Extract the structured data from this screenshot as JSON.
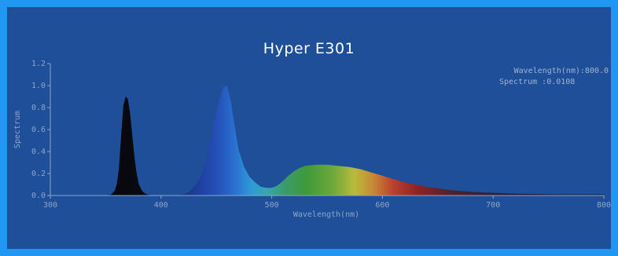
{
  "colors": {
    "frame": "#2196f3",
    "panel": "#1f4f99",
    "axis": "#8ea6c9",
    "uv_peak": "#000000"
  },
  "readout": {
    "wavelength": "Wavelength(nm):800.0",
    "spectrum": "Spectrum :0.0108"
  },
  "chart_data": {
    "type": "area",
    "title": "Hyper E301",
    "xlabel": "Wavelength(nm)",
    "ylabel": "Spectrum",
    "xlim": [
      300,
      800
    ],
    "ylim": [
      0,
      1.2
    ],
    "xticks": [
      "300",
      "400",
      "500",
      "600",
      "700",
      "800"
    ],
    "yticks": [
      "0.0",
      "0.2",
      "0.4",
      "0.6",
      "0.8",
      "1.0",
      "1.2"
    ],
    "grid": false,
    "legend": "none",
    "x": [
      350,
      355,
      358,
      360,
      362,
      364,
      366,
      368,
      370,
      372,
      374,
      376,
      378,
      380,
      383,
      386,
      390,
      395,
      400,
      405,
      410,
      415,
      420,
      425,
      430,
      435,
      440,
      445,
      450,
      455,
      458,
      460,
      463,
      466,
      470,
      475,
      480,
      485,
      490,
      495,
      500,
      505,
      510,
      515,
      520,
      525,
      530,
      540,
      550,
      560,
      570,
      580,
      590,
      600,
      610,
      620,
      630,
      640,
      650,
      660,
      670,
      680,
      690,
      700,
      710,
      720,
      730,
      740,
      750,
      760,
      770,
      780,
      790,
      800
    ],
    "values": [
      0,
      0.01,
      0.04,
      0.1,
      0.25,
      0.55,
      0.82,
      0.9,
      0.88,
      0.75,
      0.55,
      0.35,
      0.2,
      0.1,
      0.04,
      0.015,
      0.003,
      0,
      0,
      0,
      0,
      0,
      0.01,
      0.03,
      0.08,
      0.16,
      0.3,
      0.52,
      0.78,
      0.95,
      1.0,
      0.98,
      0.86,
      0.66,
      0.42,
      0.26,
      0.17,
      0.12,
      0.08,
      0.07,
      0.07,
      0.09,
      0.13,
      0.18,
      0.22,
      0.25,
      0.27,
      0.28,
      0.28,
      0.27,
      0.26,
      0.24,
      0.21,
      0.18,
      0.15,
      0.12,
      0.1,
      0.08,
      0.065,
      0.052,
      0.042,
      0.035,
      0.029,
      0.024,
      0.02,
      0.017,
      0.015,
      0.013,
      0.012,
      0.011,
      0.011,
      0.011,
      0.011,
      0.0108
    ]
  }
}
